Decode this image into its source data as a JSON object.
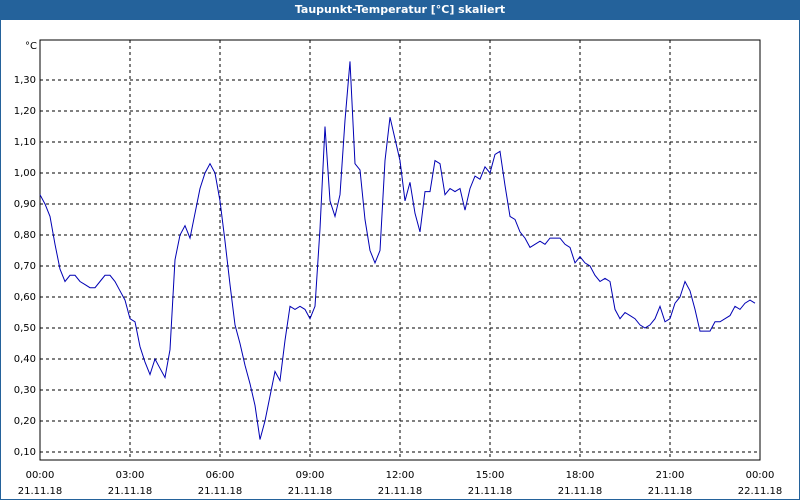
{
  "chart_data": {
    "type": "line",
    "title": "Taupunkt-Temperatur [°C] skaliert",
    "y_axis_label": "°C",
    "x": [
      0,
      10,
      20,
      30,
      40,
      50,
      60,
      70,
      80,
      90,
      100,
      110,
      120,
      130,
      140,
      150,
      160,
      170,
      180,
      190,
      200,
      210,
      220,
      230,
      240,
      250,
      260,
      270,
      280,
      290,
      300,
      310,
      320,
      330,
      340,
      350,
      360,
      370,
      380,
      390,
      400,
      410,
      420,
      430,
      440,
      450,
      460,
      470,
      480,
      490,
      500,
      510,
      520,
      530,
      540,
      550,
      560,
      570,
      580,
      590,
      600,
      610,
      620,
      630,
      640,
      650,
      660,
      670,
      680,
      690,
      700,
      710,
      720,
      730,
      740,
      750,
      760,
      770,
      780,
      790,
      800,
      810,
      820,
      830,
      840,
      850,
      860,
      870,
      880,
      890,
      900,
      910,
      920,
      930,
      940,
      950,
      960,
      970,
      980,
      990,
      1000,
      1010,
      1020,
      1030,
      1040,
      1050,
      1060,
      1070,
      1080,
      1090,
      1100,
      1110,
      1120,
      1130,
      1140,
      1150,
      1160,
      1170,
      1180,
      1190,
      1200,
      1210,
      1220,
      1230,
      1240,
      1250,
      1260,
      1270,
      1280,
      1290,
      1300,
      1310,
      1320,
      1330,
      1340,
      1350,
      1360,
      1370,
      1380,
      1390,
      1400,
      1410,
      1420,
      1430
    ],
    "series": [
      {
        "color": "#0000b4",
        "values": [
          0.93,
          0.9,
          0.86,
          0.77,
          0.69,
          0.65,
          0.67,
          0.67,
          0.65,
          0.64,
          0.63,
          0.63,
          0.65,
          0.67,
          0.67,
          0.65,
          0.62,
          0.59,
          0.53,
          0.52,
          0.44,
          0.39,
          0.35,
          0.4,
          0.37,
          0.34,
          0.43,
          0.72,
          0.8,
          0.83,
          0.79,
          0.87,
          0.95,
          1.0,
          1.03,
          1.0,
          0.91,
          0.78,
          0.64,
          0.51,
          0.45,
          0.38,
          0.32,
          0.25,
          0.14,
          0.2,
          0.28,
          0.36,
          0.33,
          0.46,
          0.57,
          0.56,
          0.57,
          0.56,
          0.53,
          0.57,
          0.82,
          1.15,
          0.91,
          0.86,
          0.93,
          1.17,
          1.36,
          1.03,
          1.01,
          0.85,
          0.75,
          0.71,
          0.75,
          1.04,
          1.18,
          1.11,
          1.04,
          0.91,
          0.97,
          0.87,
          0.81,
          0.94,
          0.94,
          1.04,
          1.03,
          0.93,
          0.95,
          0.94,
          0.95,
          0.88,
          0.95,
          0.99,
          0.98,
          1.02,
          1.0,
          1.06,
          1.07,
          0.96,
          0.86,
          0.85,
          0.81,
          0.79,
          0.76,
          0.77,
          0.78,
          0.77,
          0.79,
          0.79,
          0.79,
          0.77,
          0.76,
          0.71,
          0.73,
          0.71,
          0.7,
          0.67,
          0.65,
          0.66,
          0.65,
          0.56,
          0.53,
          0.55,
          0.54,
          0.53,
          0.51,
          0.5,
          0.51,
          0.53,
          0.57,
          0.52,
          0.53,
          0.58,
          0.6,
          0.65,
          0.62,
          0.56,
          0.49,
          0.49,
          0.49,
          0.52,
          0.52,
          0.53,
          0.54,
          0.57,
          0.56,
          0.58,
          0.59,
          0.58
        ]
      }
    ],
    "xlim": [
      0,
      1440
    ],
    "xticks": [
      {
        "value": 0,
        "label": "00:00",
        "date": "21.11.18"
      },
      {
        "value": 180,
        "label": "03:00",
        "date": "21.11.18"
      },
      {
        "value": 360,
        "label": "06:00",
        "date": "21.11.18"
      },
      {
        "value": 540,
        "label": "09:00",
        "date": "21.11.18"
      },
      {
        "value": 720,
        "label": "12:00",
        "date": "21.11.18"
      },
      {
        "value": 900,
        "label": "15:00",
        "date": "21.11.18"
      },
      {
        "value": 1080,
        "label": "18:00",
        "date": "21.11.18"
      },
      {
        "value": 1260,
        "label": "21:00",
        "date": "21.11.18"
      },
      {
        "value": 1440,
        "label": "00:00",
        "date": "22.11.18"
      }
    ],
    "ylim": [
      0.074,
      1.429
    ],
    "yticks": [
      {
        "value": 0.1,
        "label": "0,10"
      },
      {
        "value": 0.2,
        "label": "0,20"
      },
      {
        "value": 0.3,
        "label": "0,30"
      },
      {
        "value": 0.4,
        "label": "0,40"
      },
      {
        "value": 0.5,
        "label": "0,50"
      },
      {
        "value": 0.6,
        "label": "0,60"
      },
      {
        "value": 0.7,
        "label": "0,70"
      },
      {
        "value": 0.8,
        "label": "0,80"
      },
      {
        "value": 0.9,
        "label": "0,90"
      },
      {
        "value": 1.0,
        "label": "1,00"
      },
      {
        "value": 1.1,
        "label": "1,10"
      },
      {
        "value": 1.2,
        "label": "1,20"
      },
      {
        "value": 1.3,
        "label": "1,30"
      }
    ],
    "grid": true
  }
}
